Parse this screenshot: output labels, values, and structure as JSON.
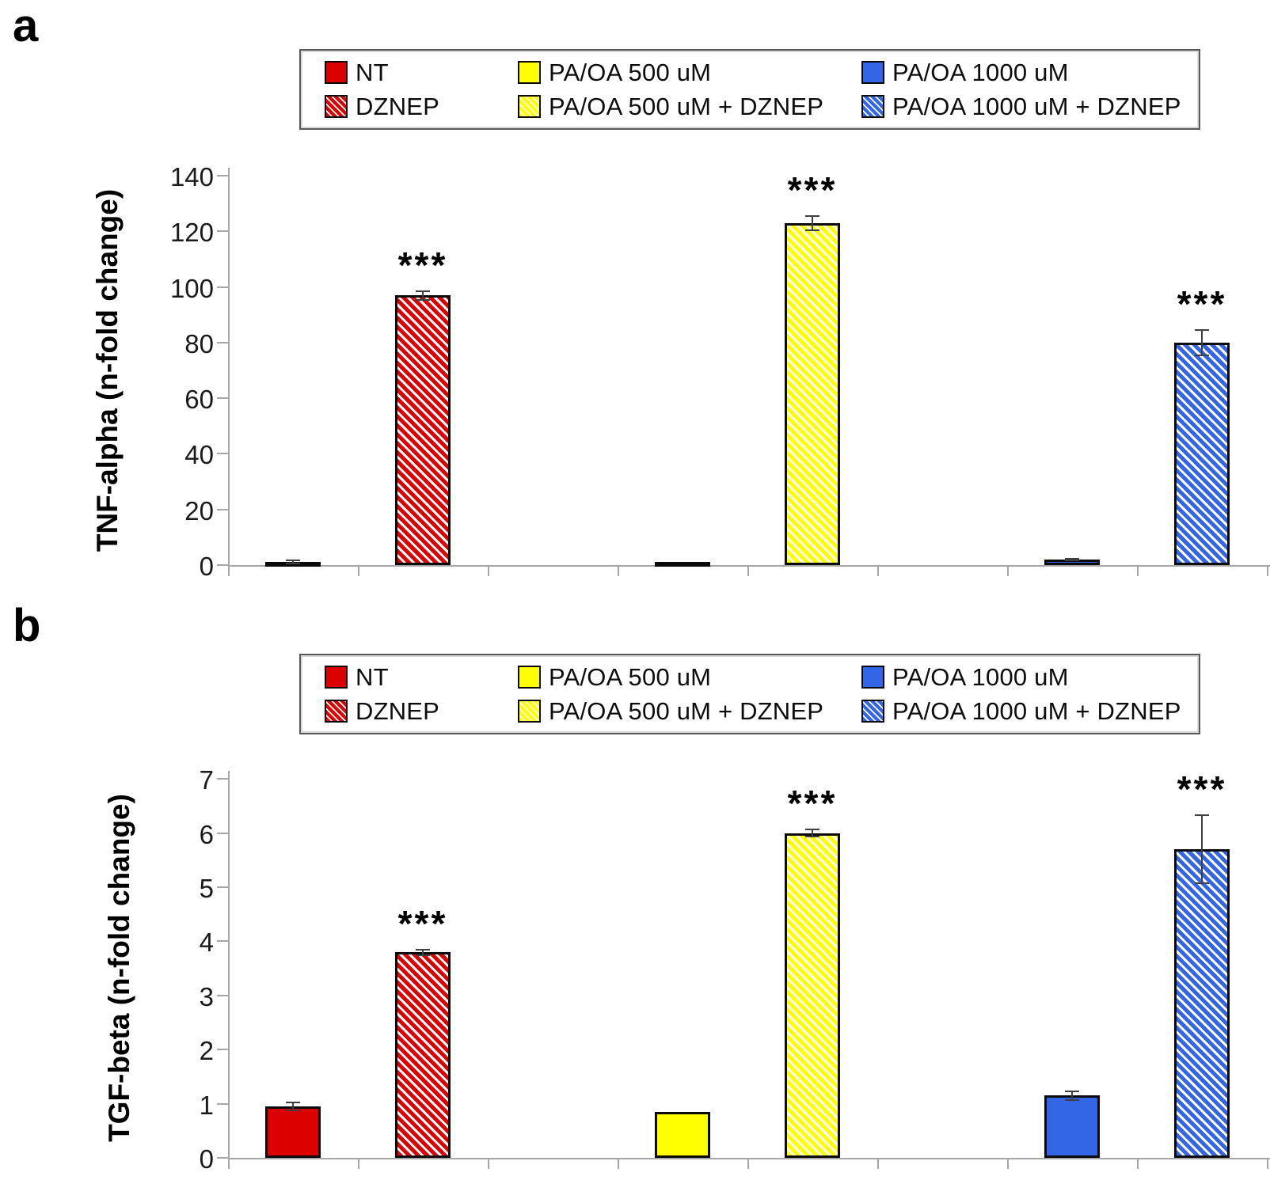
{
  "panels": [
    {
      "label": "a"
    },
    {
      "label": "b"
    }
  ],
  "legend": {
    "items": [
      {
        "label": "NT",
        "color": "#dd0000",
        "hatched": false
      },
      {
        "label": "DZNEP",
        "color": "#dd0000",
        "hatched": true
      },
      {
        "label": "PA/OA 500 uM",
        "color": "#ffff00",
        "hatched": false
      },
      {
        "label": "PA/OA 500 uM + DZNEP",
        "color": "#ffff00",
        "hatched": true
      },
      {
        "label": "PA/OA 1000 uM",
        "color": "#3366e6",
        "hatched": false
      },
      {
        "label": "PA/OA 1000 uM + DZNEP",
        "color": "#3366e6",
        "hatched": true
      }
    ]
  },
  "chart_data": [
    {
      "panel": "a",
      "type": "bar",
      "title": "",
      "xlabel": "",
      "ylabel": "TNF-alpha (n-fold change)",
      "ylim": [
        0,
        140
      ],
      "yticks": [
        0,
        20,
        40,
        60,
        80,
        100,
        120,
        140
      ],
      "grid": false,
      "legend_position": "top",
      "categories": [
        "NT",
        "DZNEP",
        "PA/OA 500 uM",
        "PA/OA 500 uM + DZNEP",
        "PA/OA 1000 uM",
        "PA/OA 1000 uM + DZNEP"
      ],
      "values": [
        1,
        97,
        0.5,
        123,
        2,
        80
      ],
      "errors": [
        0.5,
        1.5,
        0,
        2.5,
        0.4,
        4.5
      ],
      "significance": [
        "",
        "***",
        "",
        "***",
        "",
        "***"
      ],
      "colors": [
        "#dd0000",
        "#dd0000",
        "#ffff00",
        "#ffff00",
        "#3366e6",
        "#3366e6"
      ],
      "hatched": [
        false,
        true,
        false,
        true,
        false,
        true
      ]
    },
    {
      "panel": "b",
      "type": "bar",
      "title": "",
      "xlabel": "",
      "ylabel": "TGF-beta (n-fold change)",
      "ylim": [
        0,
        7
      ],
      "yticks": [
        0,
        1,
        2,
        3,
        4,
        5,
        6,
        7
      ],
      "grid": false,
      "legend_position": "top",
      "categories": [
        "NT",
        "DZNEP",
        "PA/OA 500 uM",
        "PA/OA 500 uM + DZNEP",
        "PA/OA 1000 uM",
        "PA/OA 1000 uM + DZNEP"
      ],
      "values": [
        0.95,
        3.8,
        0.85,
        6.0,
        1.15,
        5.7
      ],
      "errors": [
        0.08,
        0.05,
        0,
        0.07,
        0.08,
        0.63
      ],
      "significance": [
        "",
        "***",
        "",
        "***",
        "",
        "***"
      ],
      "colors": [
        "#dd0000",
        "#dd0000",
        "#ffff00",
        "#ffff00",
        "#3366e6",
        "#3366e6"
      ],
      "hatched": [
        false,
        true,
        false,
        true,
        false,
        true
      ]
    }
  ]
}
